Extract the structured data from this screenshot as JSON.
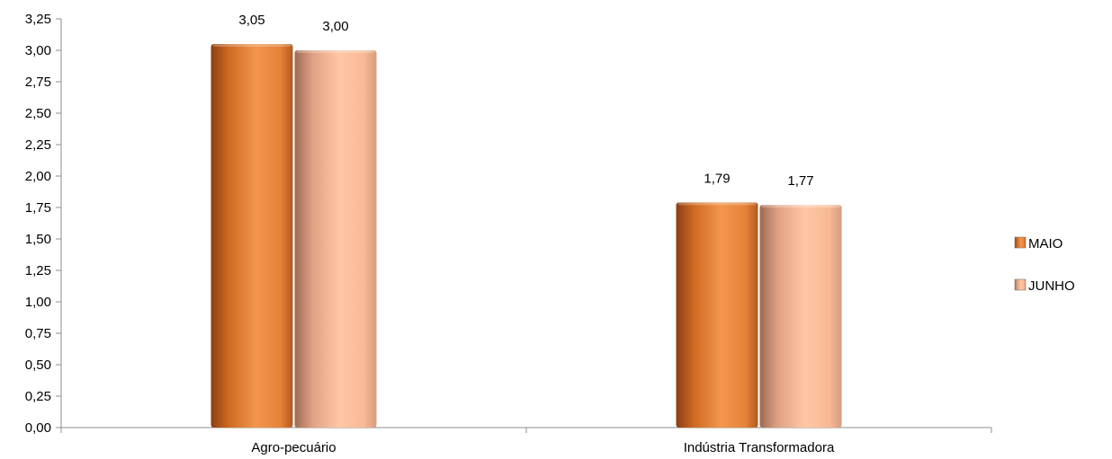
{
  "chart_data": {
    "type": "bar",
    "categories": [
      "Agro-pecuário",
      "Indústria Transformadora"
    ],
    "series": [
      {
        "name": "MAIO",
        "values": [
          3.05,
          1.79
        ],
        "labels": [
          "3,05",
          "1,79"
        ],
        "color": "#E8843C"
      },
      {
        "name": "JUNHO",
        "values": [
          3.0,
          1.77
        ],
        "labels": [
          "3,00",
          "1,77"
        ],
        "color": "#F3B592"
      }
    ],
    "yticks": [
      "0,00",
      "0,25",
      "0,50",
      "0,75",
      "1,00",
      "1,25",
      "1,50",
      "1,75",
      "2,00",
      "2,25",
      "2,50",
      "2,75",
      "3,00",
      "3,25"
    ],
    "ylim": [
      0,
      3.25
    ],
    "ystep": 0.25,
    "grid": false,
    "legend": "right"
  }
}
